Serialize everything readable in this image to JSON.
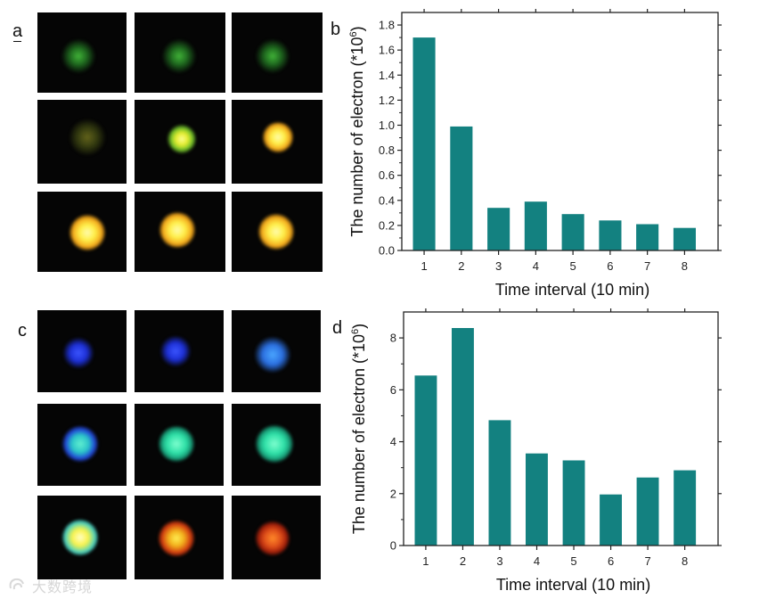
{
  "panels": {
    "a": "a",
    "b": "b",
    "c": "c",
    "d": "d"
  },
  "image_grids": {
    "a": {
      "tiles": [
        {
          "spot": "green-dim"
        },
        {
          "spot": "green-dim"
        },
        {
          "spot": "green-dim"
        },
        {
          "spot": "olive-dim"
        },
        {
          "spot": "yellow-green"
        },
        {
          "spot": "yellow-orange"
        },
        {
          "spot": "yellow-orange"
        },
        {
          "spot": "yellow-orange"
        },
        {
          "spot": "yellow-orange"
        }
      ]
    },
    "c": {
      "tiles": [
        {
          "spot": "blue"
        },
        {
          "spot": "blue"
        },
        {
          "spot": "light-blue"
        },
        {
          "spot": "cyan-blue"
        },
        {
          "spot": "cyan-green"
        },
        {
          "spot": "cyan-green"
        },
        {
          "spot": "yellow-cyan"
        },
        {
          "spot": "red-yellow"
        },
        {
          "spot": "red-orange"
        }
      ]
    }
  },
  "chart_data": [
    {
      "id": "b",
      "type": "bar",
      "categories": [
        "1",
        "2",
        "3",
        "4",
        "5",
        "6",
        "7",
        "8"
      ],
      "values": [
        1.7,
        0.99,
        0.34,
        0.39,
        0.29,
        0.24,
        0.21,
        0.18
      ],
      "xlabel": "Time interval (10 min)",
      "ylabel": "The number of electron (*10",
      "ylabel_exponent": "6",
      "ylabel_close": ")",
      "ylim": [
        0,
        1.9
      ],
      "yticks": [
        0.0,
        0.2,
        0.4,
        0.6,
        0.8,
        1.0,
        1.2,
        1.4,
        1.6,
        1.8
      ],
      "ytick_labels": [
        "0.0",
        "0.2",
        "0.4",
        "0.6",
        "0.8",
        "1.0",
        "1.2",
        "1.4",
        "1.6",
        "1.8"
      ],
      "bar_color": "#138180",
      "grid": false
    },
    {
      "id": "d",
      "type": "bar",
      "categories": [
        "1",
        "2",
        "3",
        "4",
        "5",
        "6",
        "7",
        "8"
      ],
      "values": [
        6.55,
        8.38,
        4.83,
        3.55,
        3.28,
        1.97,
        2.62,
        2.9
      ],
      "xlabel": "Time interval (10 min)",
      "ylabel": "The number of electron (*10",
      "ylabel_exponent": "6",
      "ylabel_close": ")",
      "ylim": [
        0,
        9
      ],
      "yticks": [
        0,
        2,
        4,
        6,
        8
      ],
      "ytick_labels": [
        "0",
        "2",
        "4",
        "6",
        "8"
      ],
      "bar_color": "#138180",
      "grid": false
    }
  ],
  "watermark": {
    "text": "大数跨境"
  }
}
